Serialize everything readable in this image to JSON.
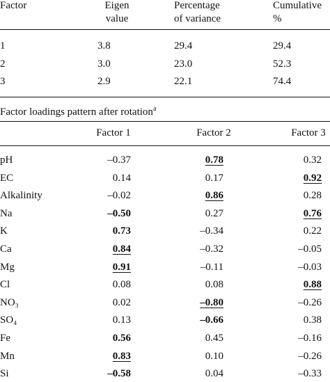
{
  "summary_table": {
    "header": [
      [
        "Factor"
      ],
      [
        "Eigen",
        "value"
      ],
      [
        "Percentage",
        "of variance"
      ],
      [
        "Cumulative",
        "%"
      ]
    ],
    "rows": [
      [
        "1",
        "3.8",
        "29.4",
        "29.4"
      ],
      [
        "2",
        "3.0",
        "23.0",
        "52.3"
      ],
      [
        "3",
        "2.9",
        "22.1",
        "74.4"
      ]
    ]
  },
  "loadings_table": {
    "caption": "Factor loadings pattern after rotation",
    "caption_note": "a",
    "header": [
      "Factor 1",
      "Factor 2",
      "Factor 3"
    ],
    "rows": [
      [
        "pH",
        "–0.37",
        {
          "text": "0.78",
          "bold": true,
          "underline": true
        },
        "0.32"
      ],
      [
        "EC",
        "0.14",
        "0.17",
        {
          "text": "0.92",
          "bold": true,
          "underline": true
        }
      ],
      [
        "Alkalinity",
        "–0.02",
        {
          "text": "0.86",
          "bold": true,
          "underline": true
        },
        "0.28"
      ],
      [
        "Na",
        {
          "text": "–0.50",
          "bold": true
        },
        "0.27",
        {
          "text": "0.76",
          "bold": true,
          "underline": true
        }
      ],
      [
        "K",
        {
          "text": "0.73",
          "bold": true
        },
        "–0.34",
        "0.22"
      ],
      [
        "Ca",
        {
          "text": "0.84",
          "bold": true,
          "underline": true
        },
        "–0.32",
        "–0.05"
      ],
      [
        "Mg",
        {
          "text": "0.91",
          "bold": true,
          "underline": true
        },
        "–0.11",
        "–0.03"
      ],
      [
        "Cl",
        "0.08",
        "0.08",
        {
          "text": "0.88",
          "bold": true,
          "underline": true
        }
      ],
      [
        "NO₃",
        "0.02",
        {
          "text": "–0.80",
          "bold": true,
          "underline": true
        },
        "–0.26"
      ],
      [
        "SO₄",
        "0.13",
        {
          "text": "–0.66",
          "bold": true
        },
        "0.38"
      ],
      [
        "Fe",
        {
          "text": "0.56",
          "bold": true
        },
        "0.45",
        "–0.16"
      ],
      [
        "Mn",
        {
          "text": "0.83",
          "bold": true,
          "underline": true
        },
        "0.10",
        "–0.26"
      ],
      [
        "Si",
        {
          "text": "–0.58",
          "bold": true
        },
        "0.04",
        "–0.33"
      ]
    ]
  }
}
